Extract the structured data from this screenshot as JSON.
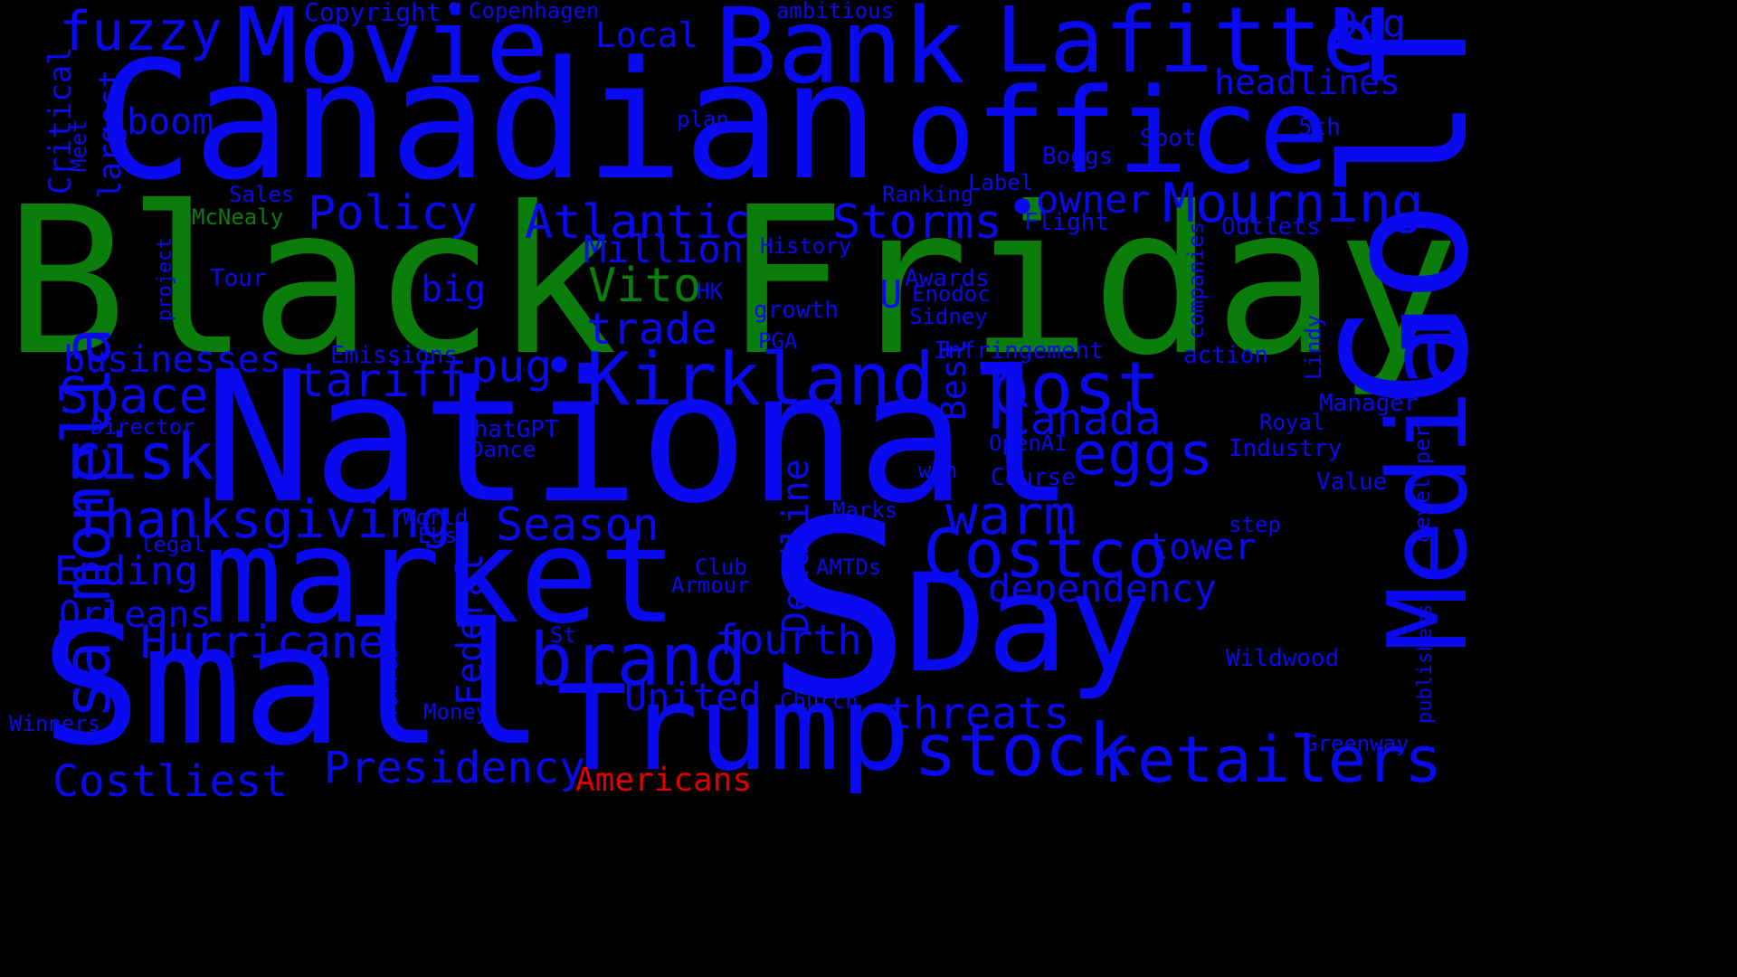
{
  "colors": {
    "background": "#000000",
    "blue": "#0a0af0",
    "green": "#0a7d0a",
    "red": "#e00000"
  },
  "words": [
    {
      "text": "Black",
      "color": "green"
    },
    {
      "text": "Friday",
      "color": "green"
    },
    {
      "text": "Canadian",
      "color": "blue"
    },
    {
      "text": "office",
      "color": "blue"
    },
    {
      "text": "National",
      "color": "blue"
    },
    {
      "text": "S",
      "color": "blue"
    },
    {
      "text": "Small",
      "color": "blue"
    },
    {
      "text": "market",
      "color": "blue"
    },
    {
      "text": "Golf",
      "color": "blue"
    },
    {
      "text": "Day",
      "color": "blue"
    },
    {
      "text": "Trump",
      "color": "blue"
    },
    {
      "text": "Movie",
      "color": "blue"
    },
    {
      "text": "Bank",
      "color": "blue"
    },
    {
      "text": "Lafitte",
      "color": "blue"
    },
    {
      "text": "Media",
      "color": "blue"
    },
    {
      "text": "post",
      "color": "blue"
    },
    {
      "text": "salmonella",
      "color": "blue"
    },
    {
      "text": "Kirkland",
      "color": "blue"
    },
    {
      "text": "Costco",
      "color": "blue"
    },
    {
      "text": "brand",
      "color": "blue"
    },
    {
      "text": "stock",
      "color": "blue"
    },
    {
      "text": "retailers",
      "color": "blue"
    },
    {
      "text": "Mourning",
      "color": "blue"
    },
    {
      "text": "eggs",
      "color": "blue"
    },
    {
      "text": "risk",
      "color": "blue"
    },
    {
      "text": "warm",
      "color": "blue"
    },
    {
      "text": "Thanksgiving",
      "color": "blue"
    },
    {
      "text": "Space",
      "color": "blue"
    },
    {
      "text": "fuzzy",
      "color": "blue"
    },
    {
      "text": "Atlantic",
      "color": "blue"
    },
    {
      "text": "Storms",
      "color": "blue"
    },
    {
      "text": "Policy",
      "color": "blue"
    },
    {
      "text": "tariff",
      "color": "blue"
    },
    {
      "text": "pug",
      "color": "blue"
    },
    {
      "text": "Vito",
      "color": "green"
    },
    {
      "text": "Season",
      "color": "blue"
    },
    {
      "text": "Hurricane",
      "color": "blue"
    },
    {
      "text": "Presidency",
      "color": "blue"
    },
    {
      "text": "Costliest",
      "color": "blue"
    },
    {
      "text": "threats",
      "color": "blue"
    },
    {
      "text": "Canada",
      "color": "blue"
    },
    {
      "text": "dependency",
      "color": "blue"
    },
    {
      "text": "Ending",
      "color": "blue"
    },
    {
      "text": "Orleans",
      "color": "blue"
    },
    {
      "text": "trade",
      "color": "blue"
    },
    {
      "text": "fourth",
      "color": "blue"
    },
    {
      "text": "United",
      "color": "blue"
    },
    {
      "text": "Million",
      "color": "blue"
    },
    {
      "text": "Deadline",
      "color": "blue"
    },
    {
      "text": "Federal",
      "color": "blue"
    },
    {
      "text": "owner",
      "color": "blue"
    },
    {
      "text": "tower",
      "color": "blue"
    },
    {
      "text": "businesses",
      "color": "blue"
    },
    {
      "text": "boom",
      "color": "blue"
    },
    {
      "text": "big",
      "color": "blue"
    },
    {
      "text": "Local",
      "color": "blue"
    },
    {
      "text": "headlines",
      "color": "blue"
    },
    {
      "text": "Dog",
      "color": "blue"
    },
    {
      "text": "Americans",
      "color": "red"
    },
    {
      "text": "Best",
      "color": "blue"
    },
    {
      "text": "U",
      "color": "blue"
    },
    {
      "text": "largest",
      "color": "blue"
    },
    {
      "text": "Critical",
      "color": "blue"
    },
    {
      "text": "Meet",
      "color": "blue"
    },
    {
      "text": "Copyright",
      "color": "blue"
    },
    {
      "text": "Copenhagen",
      "color": "blue"
    },
    {
      "text": "ambitious",
      "color": "blue"
    },
    {
      "text": "plan",
      "color": "blue"
    },
    {
      "text": "5th",
      "color": "blue"
    },
    {
      "text": "Spot",
      "color": "blue"
    },
    {
      "text": "Boggs",
      "color": "blue"
    },
    {
      "text": "Sales",
      "color": "blue"
    },
    {
      "text": "McNealy",
      "color": "green"
    },
    {
      "text": "Ranking",
      "color": "blue"
    },
    {
      "text": "Label",
      "color": "blue"
    },
    {
      "text": "Flight",
      "color": "blue"
    },
    {
      "text": "Outlets",
      "color": "blue"
    },
    {
      "text": "History",
      "color": "blue"
    },
    {
      "text": "project",
      "color": "blue"
    },
    {
      "text": "Tour",
      "color": "blue"
    },
    {
      "text": "HK",
      "color": "blue"
    },
    {
      "text": "Awards",
      "color": "blue"
    },
    {
      "text": "Enodoc",
      "color": "blue"
    },
    {
      "text": "Sidney",
      "color": "blue"
    },
    {
      "text": "growth",
      "color": "blue"
    },
    {
      "text": "companies",
      "color": "blue"
    },
    {
      "text": "PGA",
      "color": "blue"
    },
    {
      "text": "Infringement",
      "color": "blue"
    },
    {
      "text": "action",
      "color": "blue"
    },
    {
      "text": "Lindy",
      "color": "blue"
    },
    {
      "text": "Emissions",
      "color": "blue"
    },
    {
      "text": "Manager",
      "color": "blue"
    },
    {
      "text": "Director",
      "color": "blue"
    },
    {
      "text": "ChatGPT",
      "color": "blue"
    },
    {
      "text": "Dance",
      "color": "blue"
    },
    {
      "text": "Royal",
      "color": "blue"
    },
    {
      "text": "OpenAI",
      "color": "blue"
    },
    {
      "text": "Industry",
      "color": "blue"
    },
    {
      "text": "win",
      "color": "blue"
    },
    {
      "text": "Course",
      "color": "blue"
    },
    {
      "text": "Value",
      "color": "blue"
    },
    {
      "text": "developer",
      "color": "blue"
    },
    {
      "text": "Marks",
      "color": "blue"
    },
    {
      "text": "World",
      "color": "blue"
    },
    {
      "text": "EUs",
      "color": "blue"
    },
    {
      "text": "legal",
      "color": "blue"
    },
    {
      "text": "step",
      "color": "blue"
    },
    {
      "text": "Club",
      "color": "blue"
    },
    {
      "text": "AMTDs",
      "color": "blue"
    },
    {
      "text": "Armour",
      "color": "blue"
    },
    {
      "text": "St",
      "color": "blue"
    },
    {
      "text": "Wildwood",
      "color": "blue"
    },
    {
      "text": "publishers",
      "color": "blue"
    },
    {
      "text": "Torres",
      "color": "blue"
    },
    {
      "text": "Church",
      "color": "blue"
    },
    {
      "text": "Money",
      "color": "blue"
    },
    {
      "text": "Winners",
      "color": "blue"
    },
    {
      "text": "Greenway",
      "color": "blue"
    },
    {
      "text": "•",
      "color": "blue"
    },
    {
      "text": "•",
      "color": "blue"
    },
    {
      "text": "•",
      "color": "blue"
    }
  ]
}
